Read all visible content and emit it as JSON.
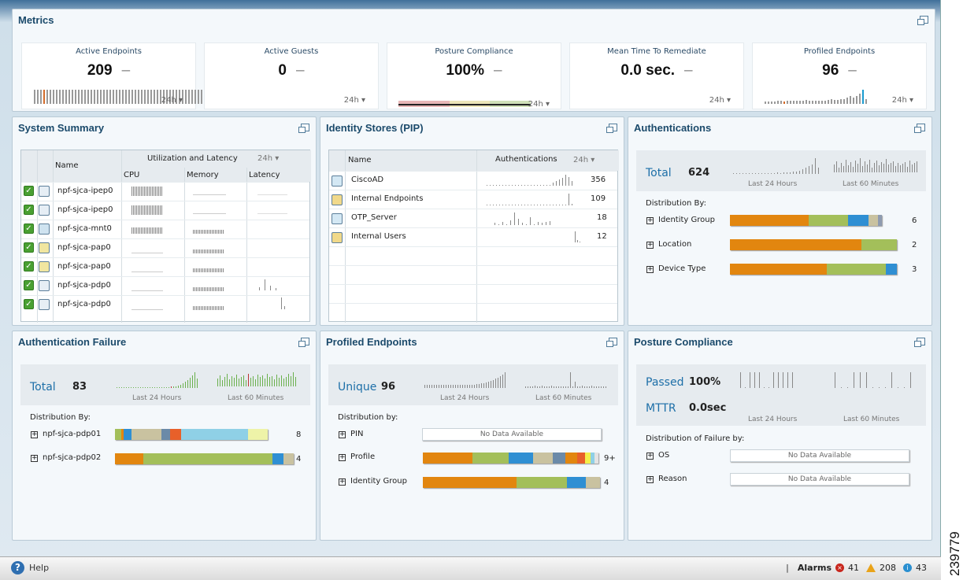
{
  "metrics": {
    "title": "Metrics",
    "cards": [
      {
        "label": "Active Endpoints",
        "value": "209",
        "range": "24h"
      },
      {
        "label": "Active Guests",
        "value": "0",
        "range": "24h"
      },
      {
        "label": "Posture Compliance",
        "value": "100%",
        "range": "24h"
      },
      {
        "label": "Mean Time To Remediate",
        "value": "0.0 sec.",
        "range": "24h"
      },
      {
        "label": "Profiled Endpoints",
        "value": "96",
        "range": "24h"
      }
    ]
  },
  "system_summary": {
    "title": "System Summary",
    "headers": {
      "name": "Name",
      "group": "Utilization and Latency",
      "range": "24h",
      "cpu": "CPU",
      "memory": "Memory",
      "latency": "Latency"
    },
    "rows": [
      {
        "name": "npf-sjca-ipep0"
      },
      {
        "name": "npf-sjca-ipep0"
      },
      {
        "name": "npf-sjca-mnt0"
      },
      {
        "name": "npf-sjca-pap0"
      },
      {
        "name": "npf-sjca-pap0"
      },
      {
        "name": "npf-sjca-pdp0"
      },
      {
        "name": "npf-sjca-pdp0"
      }
    ]
  },
  "identity_stores": {
    "title": "Identity Stores (PIP)",
    "headers": {
      "name": "Name",
      "auth": "Authentications",
      "range": "24h"
    },
    "rows": [
      {
        "name": "CiscoAD",
        "value": "356"
      },
      {
        "name": "Internal Endpoints",
        "value": "109"
      },
      {
        "name": "OTP_Server",
        "value": "18"
      },
      {
        "name": "Internal Users",
        "value": "12"
      }
    ]
  },
  "authentications": {
    "title": "Authentications",
    "total_label": "Total",
    "total": "624",
    "last24": "Last 24 Hours",
    "last60": "Last 60 Minutes",
    "dist_label": "Distribution By:",
    "items": [
      {
        "label": "Identity Group",
        "count": "6"
      },
      {
        "label": "Location",
        "count": "2"
      },
      {
        "label": "Device Type",
        "count": "3"
      }
    ]
  },
  "auth_failure": {
    "title": "Authentication Failure",
    "total_label": "Total",
    "total": "83",
    "last24": "Last 24 Hours",
    "last60": "Last 60 Minutes",
    "dist_label": "Distribution By:",
    "items": [
      {
        "label": "npf-sjca-pdp01",
        "count": "8"
      },
      {
        "label": "npf-sjca-pdp02",
        "count": "4"
      }
    ]
  },
  "profiled_endpoints": {
    "title": "Profiled Endpoints",
    "unique_label": "Unique",
    "unique": "96",
    "last24": "Last 24 Hours",
    "last60": "Last 60 Minutes",
    "dist_label": "Distribution by:",
    "items": [
      {
        "label": "PIN",
        "count": "",
        "nodata": "No Data Available"
      },
      {
        "label": "Profile",
        "count": "9+"
      },
      {
        "label": "Identity Group",
        "count": "4"
      }
    ]
  },
  "posture_compliance": {
    "title": "Posture Compliance",
    "passed_label": "Passed",
    "passed": "100%",
    "mttr_label": "MTTR",
    "mttr": "0.0sec",
    "last24": "Last 24 Hours",
    "last60": "Last 60 Minutes",
    "dist_label": "Distribution of Failure by:",
    "items": [
      {
        "label": "OS",
        "nodata": "No Data Available"
      },
      {
        "label": "Reason",
        "nodata": "No Data Available"
      }
    ]
  },
  "footer": {
    "help": "Help",
    "alarms_label": "Alarms",
    "critical": "41",
    "warning": "208",
    "info": "43",
    "separator": "|"
  },
  "figure_number": "239779",
  "colors": {
    "orange": "#e2860f",
    "green": "#a3bf5a",
    "blue": "#2f8fd3",
    "tan": "#c9c2a0",
    "accent_title": "#1b4a6b"
  }
}
